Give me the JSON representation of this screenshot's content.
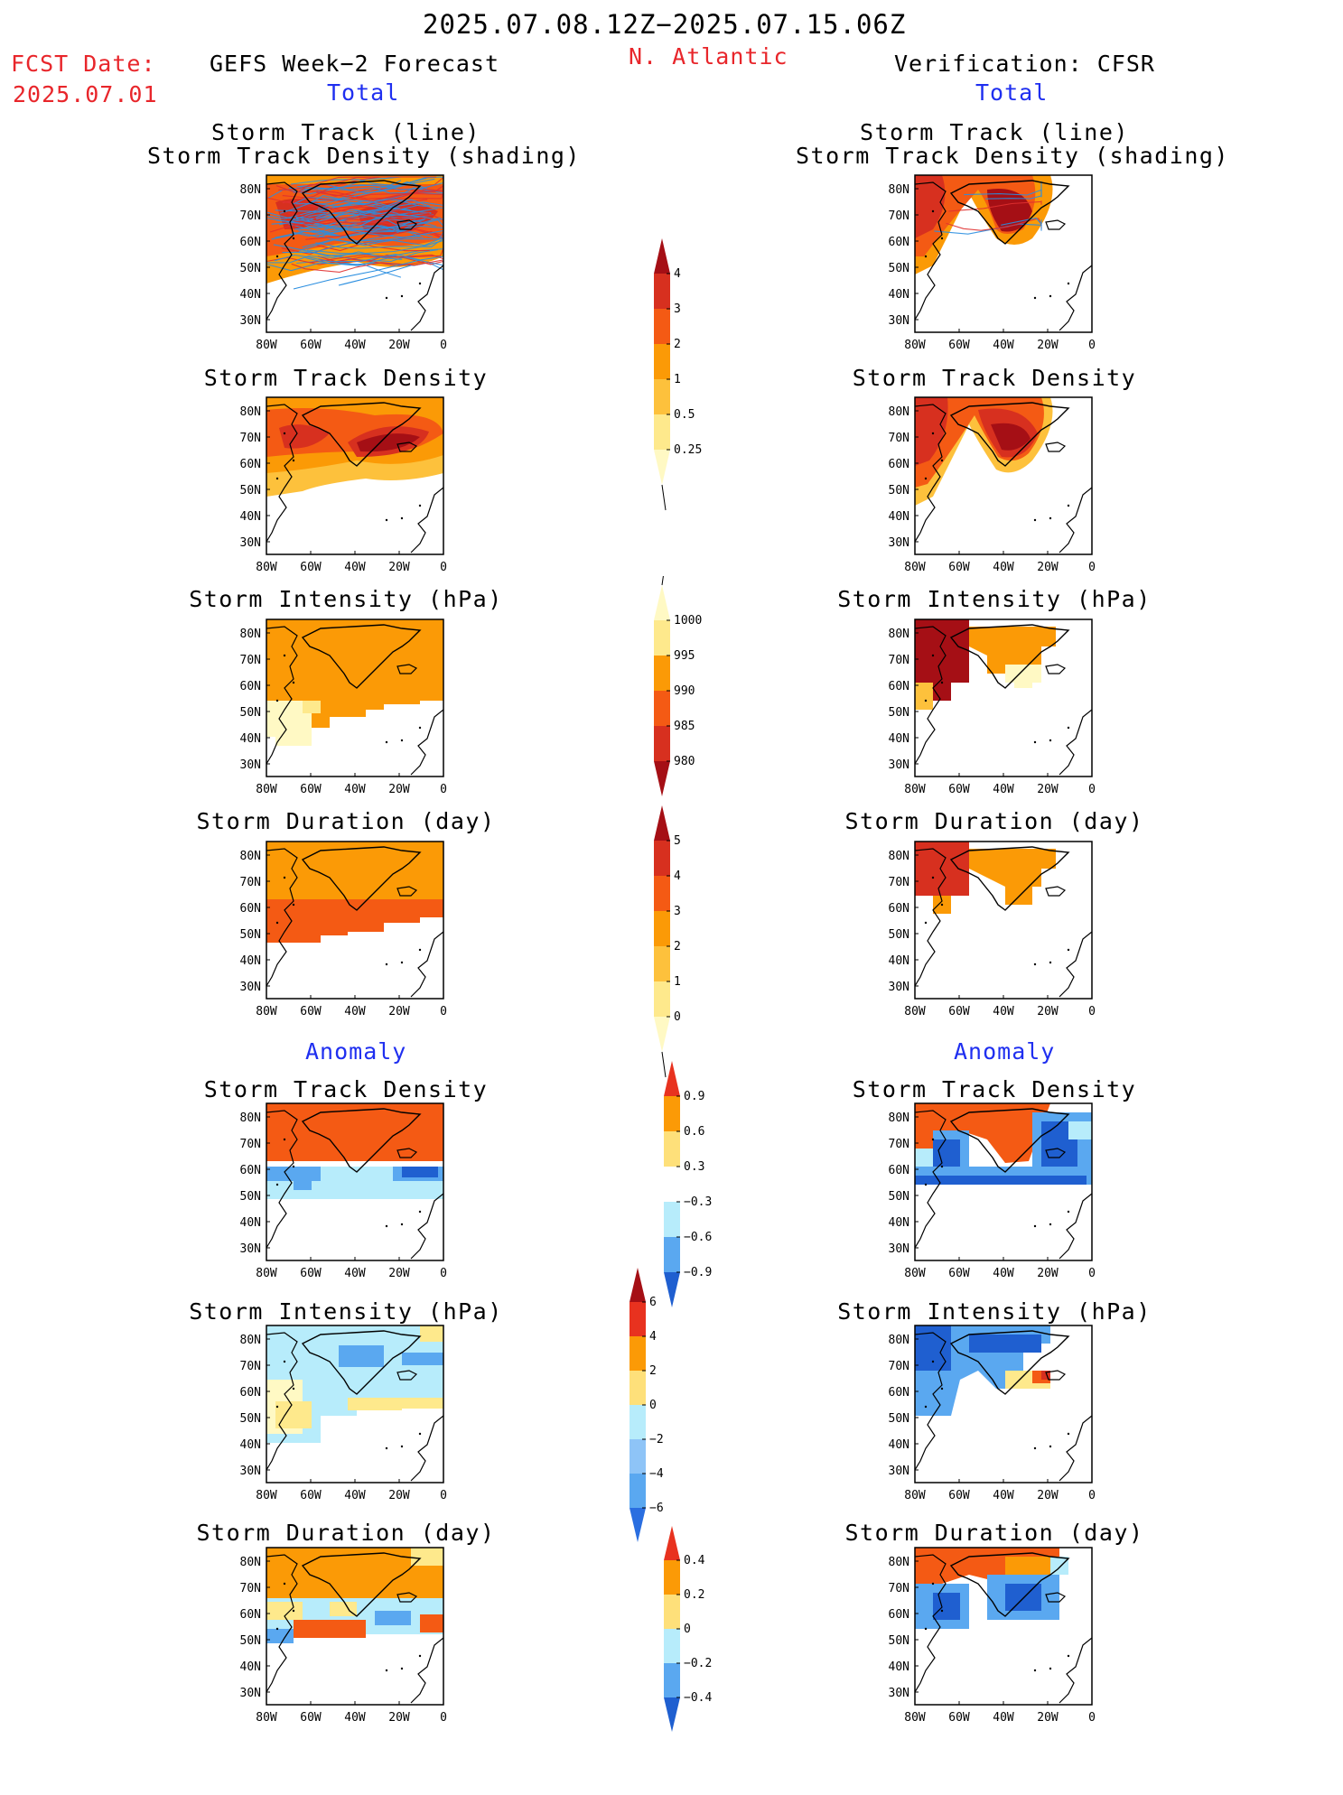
{
  "header": {
    "period": "2025.07.08.12Z−2025.07.15.06Z",
    "fcst_label": "FCST Date:",
    "fcst_date": "2025.07.01",
    "model_title": "GEFS Week−2 Forecast",
    "region": "N. Atlantic",
    "verification": "Verification: CFSR"
  },
  "sections": {
    "total": "Total",
    "anomaly": "Anomaly"
  },
  "panel_titles": {
    "track": [
      "Storm Track (line)",
      "Storm Track Density (shading)"
    ],
    "density": "Storm Track Density",
    "intensity": "Storm Intensity (hPa)",
    "duration": "Storm Duration (day)"
  },
  "axes": {
    "lat_labels": [
      "80N",
      "70N",
      "60N",
      "50N",
      "40N",
      "30N"
    ],
    "lon_labels": [
      "80W",
      "60W",
      "40W",
      "20W",
      "0"
    ]
  },
  "colorbars": [
    {
      "id": "density-total",
      "labels": [
        "4",
        "3",
        "2",
        "1",
        "0.5",
        "0.25"
      ],
      "colors": [
        "#a50f15",
        "#d7301f",
        "#f45a14",
        "#fb9a06",
        "#fdc13c",
        "#fee98c",
        "#fff9c4"
      ]
    },
    {
      "id": "intensity-total",
      "labels": [
        "1000",
        "995",
        "990",
        "985",
        "980"
      ],
      "colors": [
        "#fff9c4",
        "#fee98c",
        "#fb9a06",
        "#f45a14",
        "#d7301f",
        "#a50f15"
      ]
    },
    {
      "id": "duration-total",
      "labels": [
        "5",
        "4",
        "3",
        "2",
        "1",
        "0"
      ],
      "colors": [
        "#a50f15",
        "#d7301f",
        "#f45a14",
        "#fb9a06",
        "#fdc13c",
        "#fee98c",
        "#fff9c4"
      ]
    },
    {
      "id": "density-anom",
      "labels": [
        "0.9",
        "0.6",
        "0.3",
        "−0.3",
        "−0.6",
        "−0.9"
      ],
      "colors": [
        "#e8321f",
        "#fb9a06",
        "#fee07a",
        "#ffffff",
        "#b7ecfb",
        "#5aa8f0",
        "#1f5fd0"
      ]
    },
    {
      "id": "intensity-anom",
      "labels": [
        "6",
        "4",
        "2",
        "0",
        "−2",
        "−4",
        "−6"
      ],
      "colors": [
        "#a50f15",
        "#e8321f",
        "#fb9a06",
        "#fee07a",
        "#b7ecfb",
        "#8ec4f7",
        "#5aa8f0",
        "#2a6ee0"
      ]
    },
    {
      "id": "duration-anom",
      "labels": [
        "0.4",
        "0.2",
        "0",
        "−0.2",
        "−0.4"
      ],
      "colors": [
        "#e8321f",
        "#fb9a06",
        "#fee07a",
        "#b7ecfb",
        "#5aa8f0",
        "#1f5fd0"
      ]
    }
  ],
  "colors": {
    "dark_red": "#a50f15",
    "red": "#d7301f",
    "orange_red": "#f45a14",
    "orange": "#fb9a06",
    "light_orange": "#fdc13c",
    "yellow": "#fee98c",
    "pale": "#fff9c4",
    "light_blue": "#b7ecfb",
    "blue": "#5aa8f0",
    "dark_blue": "#1f5fd0",
    "track_blue": "#2a8ee0",
    "track_red": "#e03030"
  }
}
